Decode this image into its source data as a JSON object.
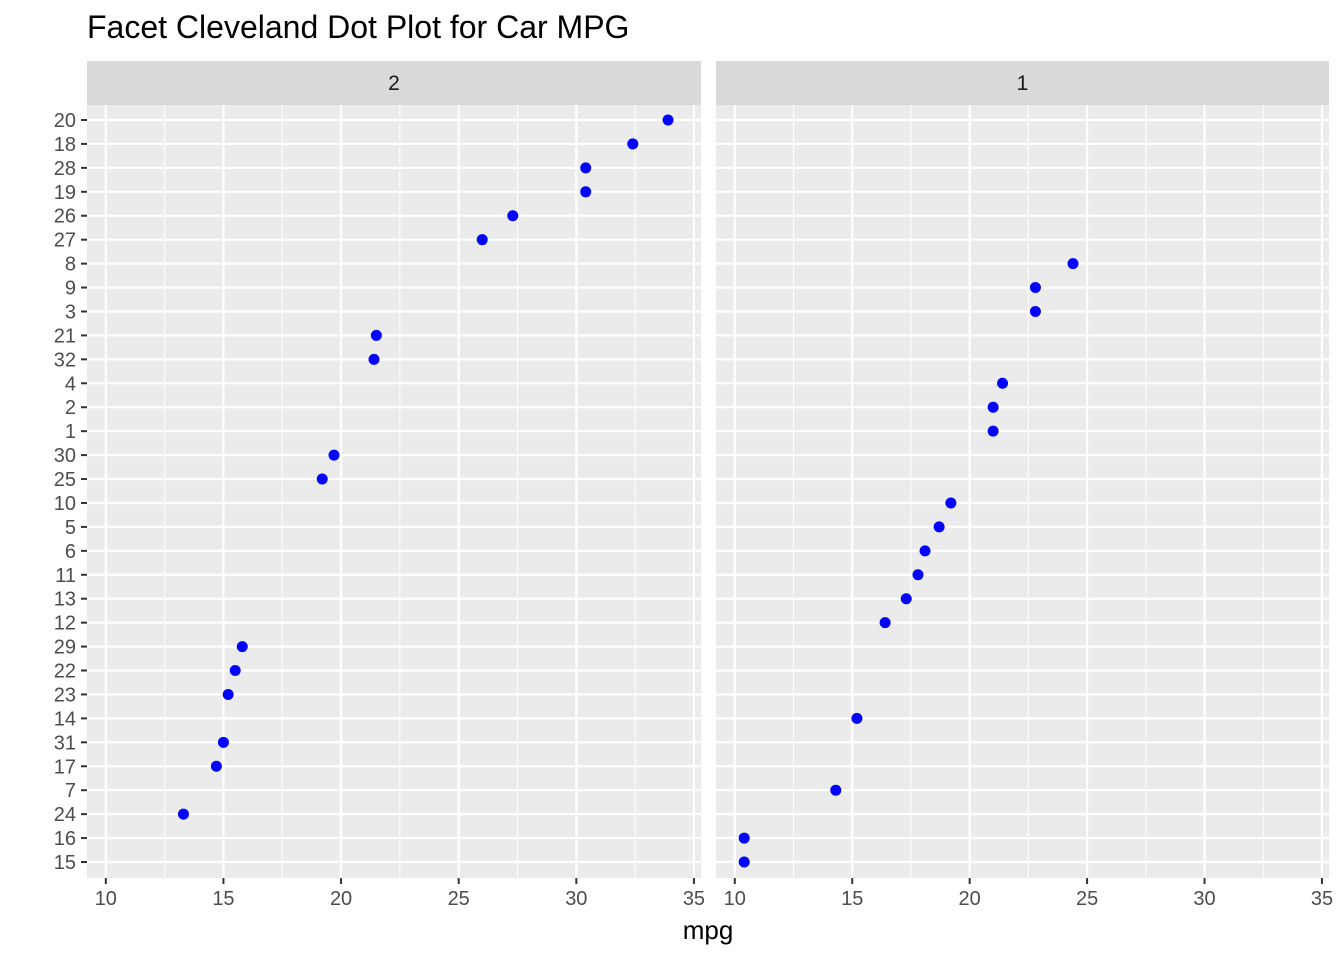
{
  "chart_data": {
    "type": "scatter",
    "title": "Facet Cleveland Dot Plot for Car MPG",
    "xlabel": "mpg",
    "ylabel": "",
    "xlim": [
      10,
      35
    ],
    "x_ticks": [
      10,
      15,
      20,
      25,
      30,
      35
    ],
    "grid": true,
    "legend": "none",
    "point_color": "#0000ff",
    "panel_background": "#ebebeb",
    "strip_background": "#d9d9d9",
    "y_categories": [
      "20",
      "18",
      "28",
      "19",
      "26",
      "27",
      "8",
      "9",
      "3",
      "21",
      "32",
      "4",
      "2",
      "1",
      "30",
      "25",
      "10",
      "5",
      "6",
      "11",
      "13",
      "12",
      "29",
      "22",
      "23",
      "14",
      "31",
      "17",
      "7",
      "24",
      "16",
      "15"
    ],
    "facets": [
      {
        "label": "2",
        "points": [
          {
            "y": "20",
            "x": 33.9
          },
          {
            "y": "18",
            "x": 32.4
          },
          {
            "y": "28",
            "x": 30.4
          },
          {
            "y": "19",
            "x": 30.4
          },
          {
            "y": "26",
            "x": 27.3
          },
          {
            "y": "27",
            "x": 26.0
          },
          {
            "y": "21",
            "x": 21.5
          },
          {
            "y": "32",
            "x": 21.4
          },
          {
            "y": "30",
            "x": 19.7
          },
          {
            "y": "25",
            "x": 19.2
          },
          {
            "y": "29",
            "x": 15.8
          },
          {
            "y": "22",
            "x": 15.5
          },
          {
            "y": "23",
            "x": 15.2
          },
          {
            "y": "31",
            "x": 15.0
          },
          {
            "y": "17",
            "x": 14.7
          },
          {
            "y": "24",
            "x": 13.3
          }
        ]
      },
      {
        "label": "1",
        "points": [
          {
            "y": "8",
            "x": 24.4
          },
          {
            "y": "9",
            "x": 22.8
          },
          {
            "y": "3",
            "x": 22.8
          },
          {
            "y": "4",
            "x": 21.4
          },
          {
            "y": "2",
            "x": 21.0
          },
          {
            "y": "1",
            "x": 21.0
          },
          {
            "y": "10",
            "x": 19.2
          },
          {
            "y": "5",
            "x": 18.7
          },
          {
            "y": "6",
            "x": 18.1
          },
          {
            "y": "11",
            "x": 17.8
          },
          {
            "y": "13",
            "x": 17.3
          },
          {
            "y": "12",
            "x": 16.4
          },
          {
            "y": "14",
            "x": 15.2
          },
          {
            "y": "7",
            "x": 14.3
          },
          {
            "y": "16",
            "x": 10.4
          },
          {
            "y": "15",
            "x": 10.4
          }
        ]
      }
    ]
  }
}
